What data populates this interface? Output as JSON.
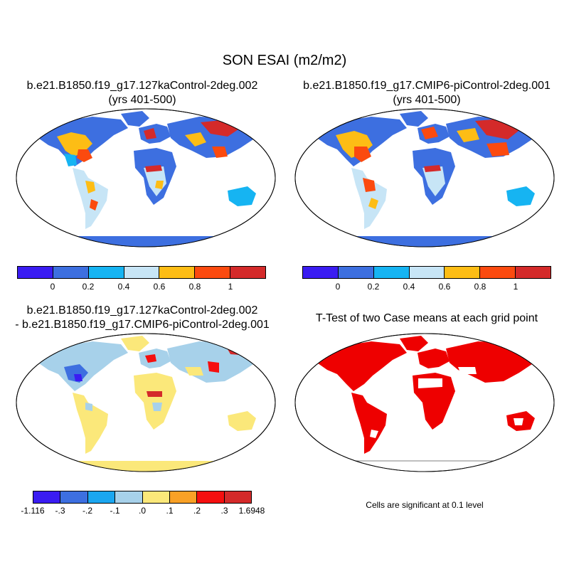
{
  "figure": {
    "title": "SON ESAI (m2/m2)"
  },
  "panels": [
    {
      "id": "case1",
      "title_line1": "b.e21.B1850.f19_g17.127kaControl-2deg.002",
      "title_line2": "(yrs 401-500)"
    },
    {
      "id": "case2",
      "title_line1": "b.e21.B1850.f19_g17.CMIP6-piControl-2deg.001",
      "title_line2": "(yrs 401-500)"
    },
    {
      "id": "diff",
      "title_line1": "b.e21.B1850.f19_g17.127kaControl-2deg.002",
      "title_line2": "- b.e21.B1850.f19_g17.CMIP6-piControl-2deg.001"
    },
    {
      "id": "ttest",
      "title_line1": "T-Test of two Case means at each grid point",
      "title_line2": ""
    }
  ],
  "colorbars": {
    "mean": {
      "colors": [
        "#3a1cf2",
        "#3d6fe0",
        "#16b4f2",
        "#c7e5f6",
        "#fdbd15",
        "#fb4a0f",
        "#d42a2a"
      ],
      "tick_labels": [
        "0",
        "0.2",
        "0.4",
        "0.6",
        "0.8",
        "1"
      ]
    },
    "diff": {
      "colors": [
        "#3a1cf2",
        "#3d6fe0",
        "#1ba6f0",
        "#a7d1ea",
        "#fbe87a",
        "#f9a126",
        "#f50f0f",
        "#d42a2a"
      ],
      "tick_labels": [
        "-1.116",
        "-.3",
        "-.2",
        "-.1",
        ".0",
        ".1",
        ".2",
        ".3",
        "1.6948"
      ]
    }
  },
  "significance_note": "Cells are significant at 0.1 level",
  "significance_color": "#ee0000"
}
